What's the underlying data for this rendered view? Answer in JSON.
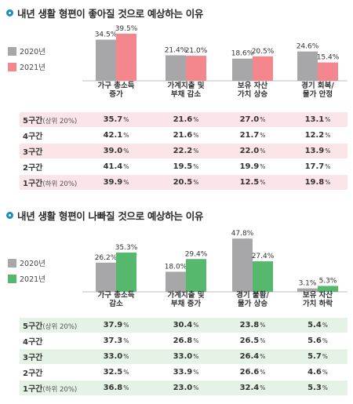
{
  "chart_data": [
    {
      "type": "bar",
      "title": "내년 생활 형편이 좋아질 것으로 예상하는 이유",
      "categories": [
        "가구 총소득\n증가",
        "가계지출 및\n부채 감소",
        "보유 자산\n가치 상승",
        "경기 회복/\n물가 안정"
      ],
      "series": [
        {
          "name": "2020년",
          "values": [
            34.5,
            21.4,
            18.6,
            24.6
          ],
          "labels": [
            "34.5%",
            "21.4%",
            "18.6%",
            "24.6%"
          ]
        },
        {
          "name": "2021년",
          "values": [
            39.5,
            21.0,
            20.5,
            15.4
          ],
          "labels": [
            "39.5%",
            "21.0%",
            "20.5%",
            "15.4%"
          ]
        }
      ],
      "colors": [
        "#a7a7a9",
        "#f3878d"
      ],
      "table_shade": "pink",
      "table": {
        "rows": [
          {
            "label": "5구간",
            "sub": "(상위 20%)",
            "values": [
              "35.7",
              "21.6",
              "27.0",
              "13.1"
            ]
          },
          {
            "label": "4구간",
            "sub": "",
            "values": [
              "42.1",
              "21.6",
              "21.7",
              "12.2"
            ]
          },
          {
            "label": "3구간",
            "sub": "",
            "values": [
              "39.0",
              "22.2",
              "22.0",
              "13.9"
            ]
          },
          {
            "label": "2구간",
            "sub": "",
            "values": [
              "41.4",
              "19.5",
              "19.9",
              "17.7"
            ]
          },
          {
            "label": "1구간",
            "sub": "(하위 20%)",
            "values": [
              "39.9",
              "20.5",
              "12.5",
              "19.8"
            ]
          }
        ],
        "unit": "%"
      }
    },
    {
      "type": "bar",
      "title": "내년 생활 형편이 나빠질 것으로 예상하는 이유",
      "categories": [
        "가구 총소득\n감소",
        "가계지출 및\n부채 증가",
        "경기 불황/\n물가 상승",
        "보유 자산\n가치 하락"
      ],
      "series": [
        {
          "name": "2020년",
          "values": [
            26.2,
            18.0,
            47.8,
            3.1
          ],
          "labels": [
            "26.2%",
            "18.0%",
            "47.8%",
            "3.1%"
          ]
        },
        {
          "name": "2021년",
          "values": [
            35.3,
            29.4,
            27.4,
            5.3
          ],
          "labels": [
            "35.3%",
            "29.4%",
            "27.4%",
            "5.3%"
          ]
        }
      ],
      "colors": [
        "#a7a7a9",
        "#55b86c"
      ],
      "table_shade": "green",
      "table": {
        "rows": [
          {
            "label": "5구간",
            "sub": "(상위 20%)",
            "values": [
              "37.9",
              "30.4",
              "23.8",
              "5.4"
            ]
          },
          {
            "label": "4구간",
            "sub": "",
            "values": [
              "37.3",
              "26.8",
              "26.5",
              "5.6"
            ]
          },
          {
            "label": "3구간",
            "sub": "",
            "values": [
              "33.0",
              "33.0",
              "26.4",
              "5.7"
            ]
          },
          {
            "label": "2구간",
            "sub": "",
            "values": [
              "32.5",
              "33.9",
              "26.6",
              "4.6"
            ]
          },
          {
            "label": "1구간",
            "sub": "(하위 20%)",
            "values": [
              "36.8",
              "23.0",
              "32.4",
              "5.3"
            ]
          }
        ],
        "unit": "%"
      }
    }
  ]
}
